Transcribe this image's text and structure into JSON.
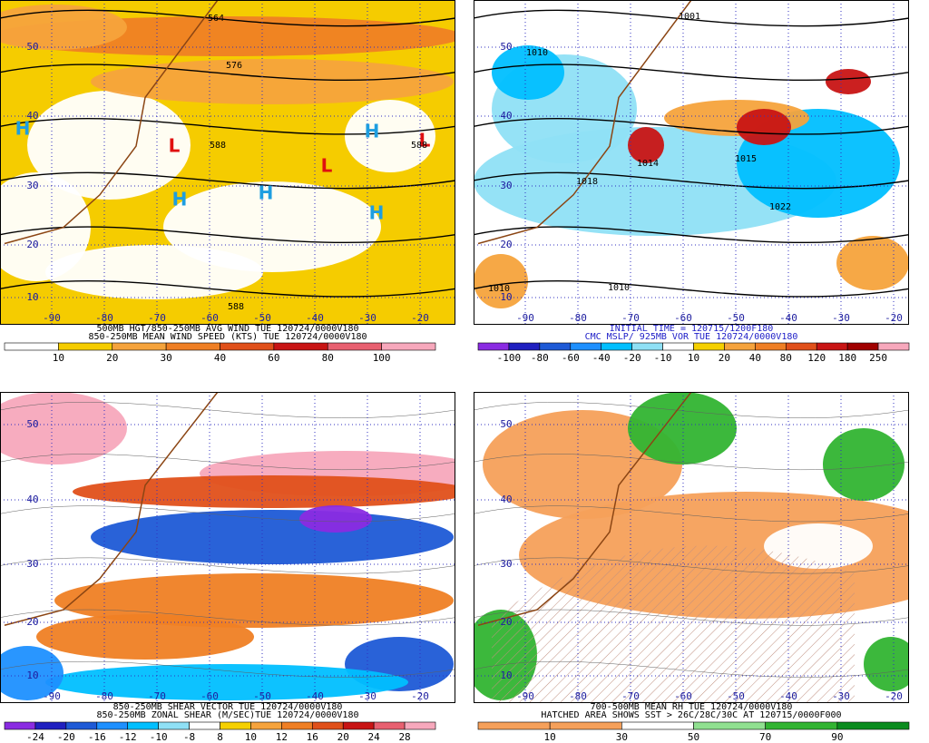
{
  "panels": [
    {
      "caption": [
        "500MB HGT/850-250MB AVG WIND TUE 120724/0000V180",
        "850-250MB MEAN WIND SPEED (KTS) TUE 120724/0000V180"
      ],
      "caption_color": "#000000",
      "colorbar": {
        "labels": [
          10,
          20,
          30,
          40,
          60,
          80,
          100
        ],
        "colors": [
          "#ffffff",
          "#f5cc00",
          "#f5a33c",
          "#ef7f24",
          "#e0501a",
          "#c81414",
          "#e86070",
          "#f7a8bc"
        ]
      },
      "lat_labels": [
        50,
        40,
        30,
        20,
        10
      ],
      "lon_labels": [
        -90,
        -80,
        -70,
        -60,
        -50,
        -40,
        -30,
        -20
      ],
      "markers": [
        {
          "text": "H",
          "color": "#1e9ee0"
        },
        {
          "text": "L",
          "color": "#e01010"
        },
        {
          "text": "H",
          "color": "#1e9ee0"
        },
        {
          "text": "H",
          "color": "#1e9ee0"
        },
        {
          "text": "H",
          "color": "#1e9ee0"
        },
        {
          "text": "L",
          "color": "#e01010"
        },
        {
          "text": "L",
          "color": "#e01010"
        },
        {
          "text": "H",
          "color": "#1e9ee0"
        }
      ],
      "contour_labels": [
        "564",
        "576",
        "588",
        "588",
        "588"
      ]
    },
    {
      "caption": [
        "INITIAL TIME = 120715/1200F180",
        "CMC MSLP/ 925MB VOR TUE 120724/0000V180"
      ],
      "caption_color": "#2020c8",
      "colorbar": {
        "labels": [
          -100,
          -80,
          -60,
          -40,
          -20,
          -10,
          10,
          20,
          40,
          80,
          120,
          180,
          250
        ],
        "colors": [
          "#8a2be2",
          "#2020c0",
          "#1e5ad6",
          "#1e90ff",
          "#00bfff",
          "#8fe0f5",
          "#ffffff",
          "#f5d000",
          "#f5a33c",
          "#ef7f24",
          "#e0501a",
          "#c81414",
          "#a00000",
          "#f7a8bc"
        ]
      },
      "lat_labels": [
        50,
        40,
        30,
        20,
        10
      ],
      "lon_labels": [
        -90,
        -80,
        -70,
        -60,
        -50,
        -40,
        -30,
        -20
      ],
      "markers": [],
      "contour_labels": [
        "1001",
        "1010",
        "1014",
        "1018",
        "1022",
        "1015",
        "1010",
        "1010"
      ]
    },
    {
      "caption": [
        "850-250MB SHEAR VECTOR TUE 120724/0000V180",
        "850-250MB ZONAL SHEAR (M/SEC)TUE 120724/0000V180"
      ],
      "caption_color": "#000000",
      "colorbar": {
        "labels": [
          -24,
          -20,
          -16,
          -12,
          -10,
          -8,
          8,
          10,
          12,
          16,
          20,
          24,
          28
        ],
        "colors": [
          "#8a2be2",
          "#2020c0",
          "#1e5ad6",
          "#1e90ff",
          "#00bfff",
          "#8fe0f5",
          "#ffffff",
          "#f5d000",
          "#f5a33c",
          "#ef7f24",
          "#e0501a",
          "#c81414",
          "#e86070",
          "#f7a8bc"
        ]
      },
      "lat_labels": [
        50,
        40,
        30,
        20,
        10
      ],
      "lon_labels": [
        -90,
        -80,
        -70,
        -60,
        -50,
        -40,
        -30,
        -20
      ],
      "markers": [],
      "contour_labels": []
    },
    {
      "caption": [
        "700-500MB MEAN RH TUE 120724/0000V180",
        "HATCHED AREA SHOWS SST > 26C/28C/30C AT 120715/0000F000"
      ],
      "caption_color": "#000000",
      "colorbar": {
        "labels": [
          10,
          30,
          50,
          70,
          90
        ],
        "colors": [
          "#f5a05a",
          "#f5a05a",
          "#ffffff",
          "#90e090",
          "#32b432",
          "#0a8c1e"
        ]
      },
      "lat_labels": [
        50,
        40,
        30,
        20,
        10
      ],
      "lon_labels": [
        -90,
        -80,
        -70,
        -60,
        -50,
        -40,
        -30,
        -20
      ],
      "markers": [],
      "contour_labels": []
    }
  ]
}
